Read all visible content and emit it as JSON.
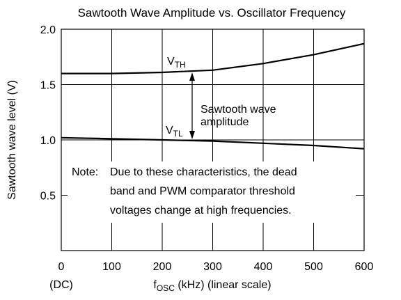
{
  "chart_data": {
    "type": "line",
    "title": "Sawtooth Wave Amplitude vs. Oscillator Frequency",
    "y_label": "Sawtooth wave level (V)",
    "x_label": {
      "main": "f",
      "sub": "OSC",
      "rest": " (kHz) (linear scale)"
    },
    "x_origin_note": "(DC)",
    "x": [
      0,
      100,
      200,
      300,
      400,
      500,
      600
    ],
    "series": [
      {
        "label": {
          "main": "V",
          "sub": "TH"
        },
        "color": "#000000",
        "values": [
          1.6,
          1.6,
          1.61,
          1.63,
          1.69,
          1.77,
          1.87
        ]
      },
      {
        "label": {
          "main": "V",
          "sub": "TL"
        },
        "color": "#000000",
        "values": [
          1.02,
          1.01,
          1.0,
          0.99,
          0.97,
          0.95,
          0.92
        ]
      }
    ],
    "xlim": [
      0,
      600
    ],
    "xticks": [
      0,
      100,
      200,
      300,
      400,
      500,
      600
    ],
    "ylim": [
      0,
      2.0
    ],
    "yticks": [
      0.5,
      {
        "value": 1.0,
        "label": "1.0"
      },
      1.5,
      {
        "value": 2.0,
        "label": "2.0"
      }
    ],
    "grid": true,
    "annotation": [
      "Sawtooth wave",
      "amplitude"
    ],
    "note": [
      "Note:",
      "Due to these characteristics, the dead",
      "band and PWM comparator threshold",
      "voltages change at high frequencies."
    ]
  }
}
